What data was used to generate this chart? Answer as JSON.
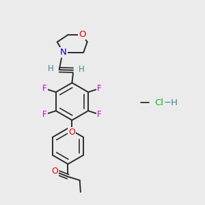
{
  "bg_color": "#ebebeb",
  "bond_color": "#2a2a2a",
  "bond_width": 1.4,
  "dbo": 0.016,
  "atom_colors": {
    "O": "#e00000",
    "N": "#0000cc",
    "F": "#cc00cc",
    "H": "#3a8a8a",
    "Cl": "#22aa22",
    "C": "#2a2a2a"
  },
  "font_size": 8.5,
  "hcl_font_size": 9.5
}
